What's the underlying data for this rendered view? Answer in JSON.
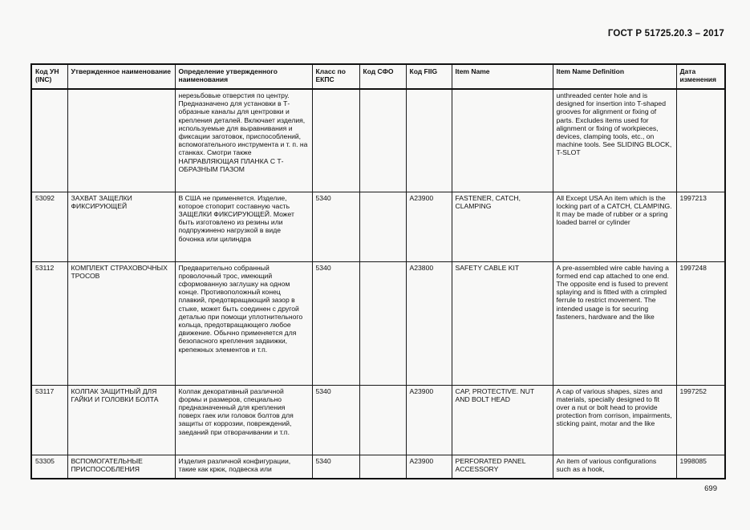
{
  "page": {
    "doc_number": "ГОСТ Р 51725.20.3 – 2017",
    "page_number": "699"
  },
  "table": {
    "columns": [
      "Код УН (INC)",
      "Утвержденное наименование",
      "Определение утвержденного наименования",
      "Класс по ЕКПС",
      "Код СФО",
      "Код FIIG",
      "Item Name",
      "Item Name Definition",
      "Дата изменения"
    ],
    "rows": [
      {
        "cells": [
          "",
          "",
          "нерезьбовые отверстия по центру. Предназначено для установки в Т-образные каналы для центровки и крепления деталей. Включает изделия, используемые для выравнивания и фиксации заготовок, приспособлений, вспомогательного инструмента и т. п. на станках.  Смотри также НАПРАВЛЯЮЩАЯ ПЛАНКА С Т-ОБРАЗНЫМ ПАЗОМ",
          "",
          "",
          "",
          "",
          "unthreaded center hole and is designed for insertion into T-shaped grooves for alignment or fixing of parts. Excludes items used for alignment or fixing of workpieces, devices, clamping tools, etc., on machine tools. See SLIDING BLOCK, T-SLOT",
          ""
        ]
      },
      {
        "cells": [
          "53092",
          "ЗАХВАТ ЗАЩЕЛКИ ФИКСИРУЮЩЕЙ",
          "В США не применяется. Изделие, которое стопорит составную часть ЗАЩЕЛКИ ФИКСИРУЮЩЕЙ. Может быть изготовлено из резины или подпружинено нагрузкой в виде бочонка или цилиндра",
          "5340",
          "",
          "A23900",
          "FASTENER, CATCH, CLAMPING",
          "All Except USA An item which is the locking part of a CATCH, CLAMPING. It may be made of rubber or a spring loaded barrel or cylinder",
          "1997213"
        ]
      },
      {
        "cells": [
          "53112",
          "КОМПЛЕКТ СТРАХОВОЧНЫХ ТРОСОВ",
          "Предварительно собранный проволочный трос, имеющий сформованную заглушку на одном конце. Противоположный конец плавкий, предотвращающий зазор в стыке, может быть соединен с другой деталью при помощи уплотнительного кольца, предотвращающего любое движение. Обычно применяется для безопасного крепления задвижки, крепежных элементов и т.п.",
          "5340",
          "",
          "A23800",
          "SAFETY CABLE KIT",
          "A pre-assembled wire cable having a formed end cap attached to one end. The opposite end is fused to prevent splaying and is fitted with a crimpled ferrule to restrict movement. The intended usage is for securing fasteners, hardware and the like",
          "1997248"
        ]
      },
      {
        "cells": [
          "53117",
          "КОЛПАК ЗАЩИТНЫЙ ДЛЯ ГАЙКИ И ГОЛОВКИ БОЛТА",
          "Колпак декоративный различной формы и размеров, специально предназначенный для крепления поверх гаек или головок болтов для защиты от коррозии, повреждений, заеданий при отворачивании и т.п.",
          "5340",
          "",
          "A23900",
          "CAP, PROTECTIVE. NUT AND BOLT HEAD",
          "A cap of various shapes, sizes and materials, specially designed to fit over a nut or bolt head to provide protection from corrison, impairments, sticking paint, motar and the like",
          "1997252"
        ]
      },
      {
        "cells": [
          "53305",
          "ВСПОМОГАТЕЛЬНЫЕ ПРИСПОСОБЛЕНИЯ",
          "Изделия различной конфигурации, такие как крюк, подвеска или",
          "5340",
          "",
          "A23900",
          "PERFORATED PANEL ACCESSORY",
          "An item of various configurations such as a hook,",
          "1998085"
        ]
      }
    ]
  }
}
